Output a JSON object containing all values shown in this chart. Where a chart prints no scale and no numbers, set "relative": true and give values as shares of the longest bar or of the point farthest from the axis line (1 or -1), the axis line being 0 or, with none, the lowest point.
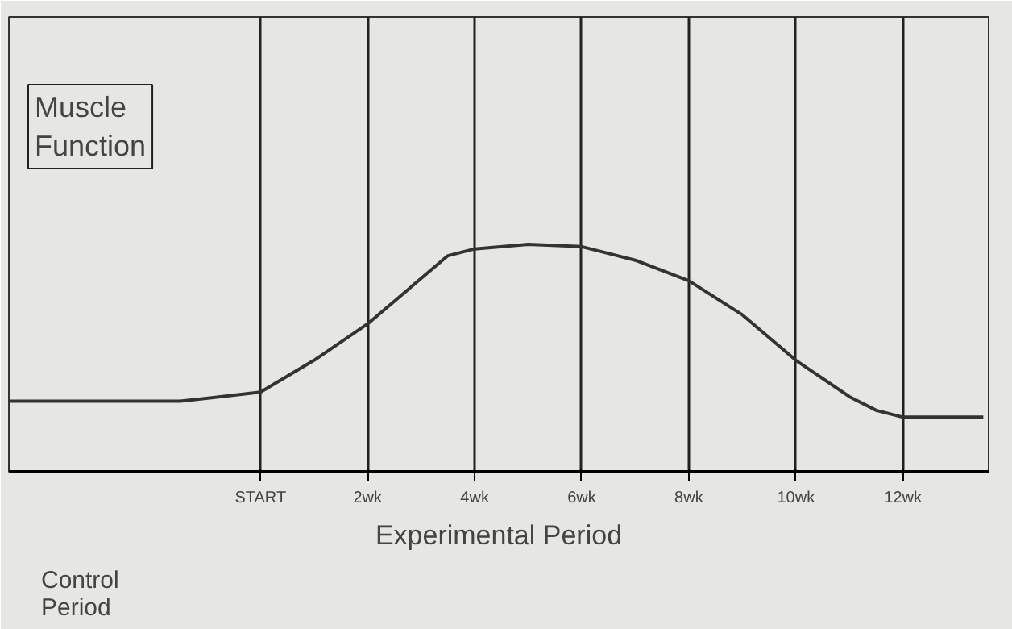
{
  "chart_data": {
    "type": "line",
    "relative": true,
    "xlabel": "Experimental Period",
    "annotations": [
      "Muscle Function",
      "Control Period"
    ],
    "x": [
      -4.7,
      -1.5,
      0,
      1,
      2,
      3,
      3.5,
      4,
      5,
      6,
      7,
      8,
      9,
      10,
      11,
      11.5,
      12,
      13.5
    ],
    "series": [
      {
        "color": "#333333",
        "values": [
          0.31,
          0.31,
          0.35,
          0.49,
          0.65,
          0.85,
          0.95,
          0.98,
          1,
          0.99,
          0.93,
          0.84,
          0.69,
          0.49,
          0.33,
          0.27,
          0.24,
          0.24
        ]
      }
    ],
    "xlim": [
      -4.7,
      13.6
    ],
    "xticks": [
      {
        "value": 0,
        "label": "START"
      },
      {
        "value": 2,
        "label": "2wk"
      },
      {
        "value": 4,
        "label": "4wk"
      },
      {
        "value": 6,
        "label": "6wk"
      },
      {
        "value": 8,
        "label": "8wk"
      },
      {
        "value": 10,
        "label": "10wk"
      },
      {
        "value": 12,
        "label": "12wk"
      }
    ],
    "grid": "x",
    "line_style": "solid",
    "marker": "none"
  }
}
